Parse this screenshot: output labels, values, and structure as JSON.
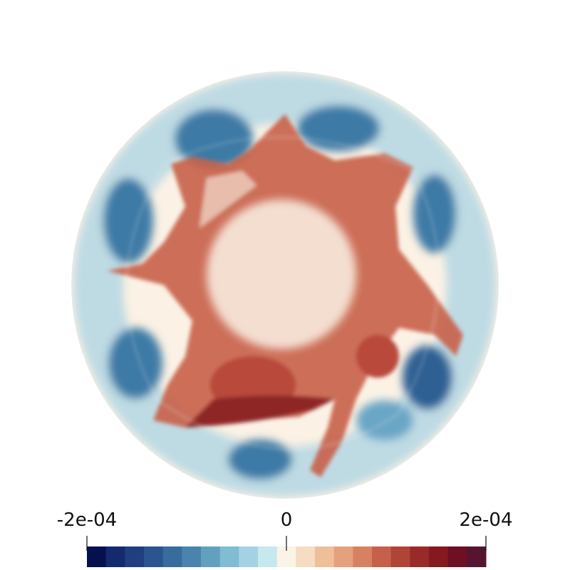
{
  "colorbar": {
    "range": [
      -0.0002,
      0.0002
    ],
    "ticks": [
      {
        "value": -0.0002,
        "label": "-2e-04"
      },
      0,
      {
        "value": 0.0002,
        "label": "2e-04"
      }
    ],
    "colors": [
      "#05104f",
      "#142a6e",
      "#1f3f80",
      "#2a5590",
      "#386c9c",
      "#4a84ae",
      "#62a0bf",
      "#80bcd3",
      "#a3d3e3",
      "#c6e8ef",
      "#fbf3e6",
      "#f5dcc2",
      "#efbf9a",
      "#e5a17d",
      "#d88162",
      "#c6604a",
      "#b04437",
      "#9a2a27",
      "#84191f",
      "#6e0f24",
      "#551531"
    ]
  }
}
